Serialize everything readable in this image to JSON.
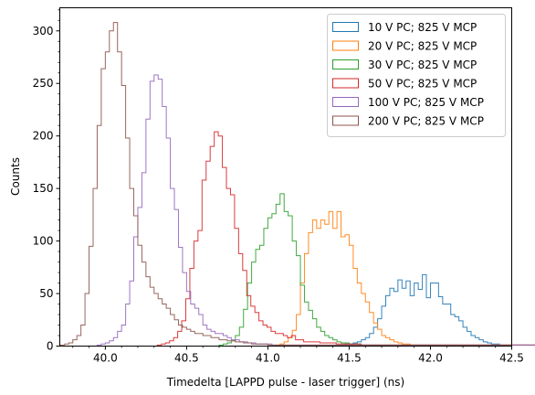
{
  "chart_data": {
    "type": "histogram",
    "title": "",
    "xlabel": "Timedelta [LAPPD pulse - laser trigger] (ns)",
    "ylabel": "Counts",
    "xlim": [
      39.72,
      42.5
    ],
    "ylim": [
      0,
      322
    ],
    "bin_width": 0.025,
    "x_ticks": [
      40.0,
      40.5,
      41.0,
      41.5,
      42.0,
      42.5
    ],
    "x_tick_labels": [
      "40.0",
      "40.5",
      "41.0",
      "41.5",
      "42.0",
      "42.5"
    ],
    "y_ticks": [
      0,
      50,
      100,
      150,
      200,
      250,
      300
    ],
    "y_tick_labels": [
      "0",
      "50",
      "100",
      "150",
      "200",
      "250",
      "300"
    ],
    "legend_position": "top-right",
    "grid": false,
    "series": [
      {
        "name": "10 V PC; 825 V MCP",
        "color": "#1f77b4",
        "start": 41.45,
        "counts": [
          1,
          2,
          2,
          3,
          4,
          6,
          8,
          12,
          18,
          26,
          38,
          48,
          55,
          52,
          63,
          55,
          62,
          48,
          60,
          54,
          68,
          46,
          60,
          60,
          47,
          40,
          40,
          30,
          28,
          24,
          18,
          14,
          10,
          8,
          6,
          4,
          3,
          2,
          2,
          1,
          1,
          1
        ]
      },
      {
        "name": "20 V PC; 825 V MCP",
        "color": "#ff7f0e",
        "start": 41.05,
        "counts": [
          1,
          2,
          4,
          8,
          15,
          30,
          60,
          88,
          108,
          120,
          112,
          120,
          116,
          128,
          112,
          128,
          104,
          106,
          96,
          74,
          60,
          50,
          42,
          32,
          22,
          16,
          10,
          8,
          6,
          4,
          3,
          2,
          2,
          1,
          1,
          1,
          1,
          1,
          1,
          1,
          1,
          1,
          1,
          1,
          1,
          1,
          1,
          1,
          1,
          1,
          1,
          1,
          1,
          1,
          1,
          1,
          1,
          1,
          1,
          1,
          1,
          1,
          1,
          1,
          1,
          1
        ]
      },
      {
        "name": "30 V PC; 825 V MCP",
        "color": "#2ca02c",
        "start": 40.7,
        "counts": [
          1,
          2,
          3,
          5,
          10,
          18,
          35,
          60,
          80,
          92,
          96,
          112,
          122,
          126,
          135,
          145,
          128,
          124,
          100,
          86,
          58,
          42,
          34,
          26,
          18,
          14,
          10,
          8,
          6,
          4,
          3,
          3,
          2,
          2,
          2,
          1,
          1,
          1,
          1,
          1,
          1,
          1,
          1,
          1,
          1,
          1,
          1,
          1,
          1,
          1,
          1,
          1,
          1,
          1,
          1,
          1,
          1,
          1,
          1,
          1,
          1,
          1,
          1,
          1,
          1,
          1,
          1,
          1,
          1,
          1,
          1,
          1,
          1,
          1,
          1,
          1,
          1,
          1,
          1,
          1,
          1,
          1,
          1,
          1,
          1,
          1,
          1,
          1,
          1,
          1,
          1,
          1,
          1,
          1,
          1,
          1,
          1
        ]
      },
      {
        "name": "50 V PC; 825 V MCP",
        "color": "#d62728",
        "start": 40.32,
        "counts": [
          1,
          2,
          3,
          5,
          8,
          14,
          24,
          45,
          74,
          100,
          110,
          158,
          176,
          190,
          204,
          200,
          170,
          150,
          144,
          112,
          88,
          72,
          48,
          38,
          32,
          24,
          20,
          18,
          14,
          12,
          12,
          10,
          8,
          10,
          6,
          6,
          4,
          4,
          4,
          4,
          3,
          3,
          3,
          3,
          2,
          2,
          2,
          2,
          2,
          2,
          1,
          1,
          1,
          1,
          1,
          1,
          1,
          1,
          1,
          1,
          1,
          1,
          1,
          1,
          1,
          1,
          1,
          1,
          1,
          1,
          1,
          1,
          1,
          1,
          1,
          1,
          1,
          1,
          1,
          1,
          1,
          1,
          1,
          1,
          1,
          1,
          1,
          1,
          1,
          1,
          1,
          1,
          1,
          1,
          1,
          1,
          1,
          1,
          1,
          1,
          1,
          1,
          1,
          1,
          1,
          1,
          1,
          1,
          1,
          1,
          1,
          1
        ]
      },
      {
        "name": "100 V PC; 825 V MCP",
        "color": "#9467bd",
        "start": 39.95,
        "counts": [
          1,
          2,
          3,
          5,
          8,
          14,
          20,
          40,
          62,
          104,
          132,
          165,
          216,
          252,
          258,
          254,
          228,
          198,
          150,
          130,
          94,
          70,
          52,
          40,
          36,
          30,
          20,
          16,
          14,
          12,
          12,
          10,
          8,
          6,
          6,
          4,
          4,
          3,
          3,
          2,
          2,
          2,
          2,
          1,
          1,
          1,
          1,
          1,
          1,
          1,
          1,
          1,
          1,
          1,
          1,
          1,
          1,
          1,
          1,
          1,
          1,
          1,
          1,
          1,
          1,
          1,
          1,
          1,
          1,
          1,
          1,
          1,
          1,
          1,
          1,
          1,
          1,
          1,
          1,
          1,
          1,
          1,
          1,
          1,
          1,
          1,
          1,
          1,
          1,
          1,
          1,
          1,
          1,
          1,
          1,
          1,
          1,
          1,
          1,
          1,
          1,
          1,
          1,
          1,
          1,
          1,
          1,
          1,
          1,
          1,
          1,
          1,
          1,
          1,
          1,
          1
        ]
      },
      {
        "name": "200 V PC; 825 V MCP",
        "color": "#8c564b",
        "start": 39.725,
        "counts": [
          1,
          2,
          3,
          6,
          10,
          20,
          50,
          95,
          150,
          210,
          264,
          280,
          300,
          308,
          280,
          248,
          198,
          150,
          124,
          96,
          80,
          66,
          56,
          50,
          45,
          40,
          36,
          30,
          25,
          20,
          18,
          16,
          14,
          12,
          12,
          10,
          10,
          8,
          8,
          6,
          6,
          5,
          5,
          4,
          4,
          3,
          3,
          2,
          2,
          2,
          2,
          1,
          1,
          1,
          1,
          1,
          1,
          1,
          1,
          1,
          1,
          1,
          1,
          1,
          1,
          1,
          1,
          1,
          1,
          1,
          1,
          1,
          1,
          1,
          1,
          1,
          1,
          1,
          1,
          1,
          1,
          1,
          1,
          1,
          1,
          1,
          1,
          1,
          1,
          1,
          1,
          1,
          1,
          1,
          1,
          1,
          1,
          1,
          1,
          1,
          1,
          1,
          1,
          1,
          1,
          1,
          1,
          1,
          1,
          1,
          1
        ]
      }
    ]
  }
}
